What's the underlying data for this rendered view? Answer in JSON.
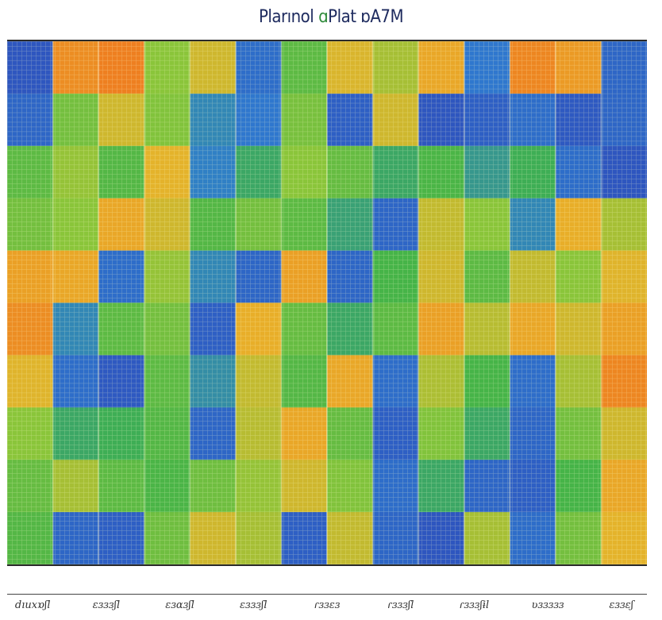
{
  "title": {
    "pre": "Plarınol ",
    "accent": "ɑ",
    "post": "Plat ɒA7Ⅿ"
  },
  "chart_data": {
    "type": "heatmap",
    "title": "Plarınol ɑPlat ɒA7Ⅿ",
    "rows": 10,
    "cols": 14,
    "x_tick_labels": [
      "dıuxɒʃl",
      "ɛɜɜɜʃl",
      "ɛɜɑɜʃl",
      "ɛɜɜɜʃl",
      "ɾɜɜɛɜ",
      "ɾɜɜɜʃl",
      "ɾɜɜɜʃɨl",
      "ʋɜɜɜɜɜ",
      "ɛɜɜɛʃ"
    ],
    "colorscale": [
      "#2d45b8",
      "#2f7cd0",
      "#3fb24a",
      "#8ac53a",
      "#e8b22a",
      "#ee7b1f",
      "#d8452a"
    ],
    "values": [
      [
        0.05,
        0.78,
        0.82,
        0.5,
        0.62,
        0.12,
        0.4,
        0.64,
        0.55,
        0.7,
        0.15,
        0.8,
        0.74,
        0.1
      ],
      [
        0.1,
        0.45,
        0.62,
        0.48,
        0.2,
        0.15,
        0.46,
        0.08,
        0.62,
        0.05,
        0.08,
        0.12,
        0.06,
        0.1
      ],
      [
        0.4,
        0.52,
        0.38,
        0.66,
        0.18,
        0.3,
        0.5,
        0.42,
        0.3,
        0.36,
        0.25,
        0.32,
        0.12,
        0.05
      ],
      [
        0.45,
        0.5,
        0.7,
        0.62,
        0.38,
        0.45,
        0.4,
        0.28,
        0.1,
        0.6,
        0.5,
        0.2,
        0.68,
        0.55
      ],
      [
        0.72,
        0.7,
        0.12,
        0.52,
        0.2,
        0.1,
        0.72,
        0.1,
        0.35,
        0.62,
        0.4,
        0.6,
        0.5,
        0.65
      ],
      [
        0.78,
        0.2,
        0.4,
        0.45,
        0.08,
        0.68,
        0.42,
        0.3,
        0.4,
        0.72,
        0.58,
        0.7,
        0.62,
        0.72
      ],
      [
        0.65,
        0.12,
        0.06,
        0.4,
        0.22,
        0.6,
        0.38,
        0.7,
        0.12,
        0.56,
        0.35,
        0.12,
        0.55,
        0.8
      ],
      [
        0.5,
        0.3,
        0.32,
        0.38,
        0.1,
        0.58,
        0.7,
        0.42,
        0.08,
        0.48,
        0.3,
        0.1,
        0.45,
        0.62
      ],
      [
        0.42,
        0.55,
        0.4,
        0.36,
        0.44,
        0.52,
        0.62,
        0.48,
        0.12,
        0.3,
        0.1,
        0.08,
        0.35,
        0.7
      ],
      [
        0.38,
        0.1,
        0.08,
        0.44,
        0.62,
        0.55,
        0.08,
        0.6,
        0.1,
        0.05,
        0.55,
        0.12,
        0.45,
        0.66
      ]
    ]
  }
}
